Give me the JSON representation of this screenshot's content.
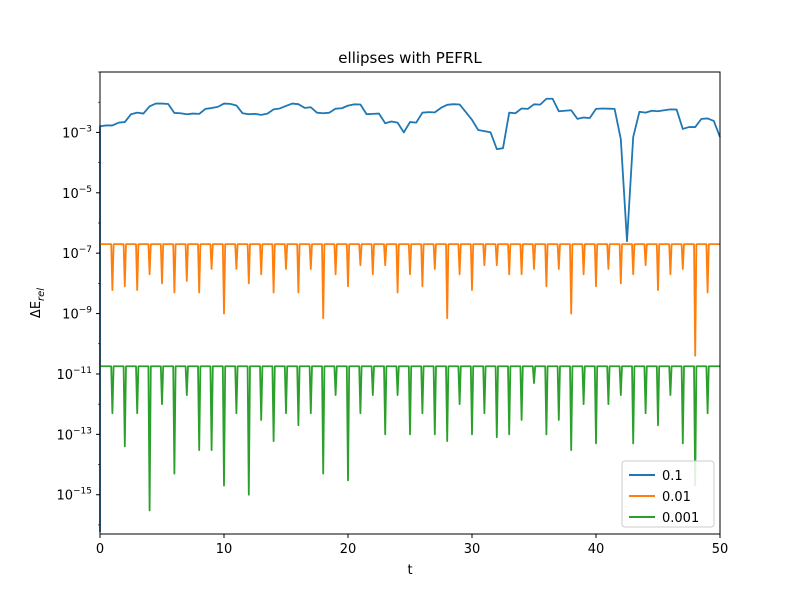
{
  "chart_data": {
    "type": "line",
    "title": "ellipses with PEFRL",
    "xlabel": "t",
    "ylabel": "ΔE",
    "ylabel_subscript": "rel",
    "xlim": [
      0,
      50
    ],
    "ylim_log10": [
      -16.3,
      -1.0
    ],
    "yscale": "log",
    "grid": false,
    "legend_position": "lower-right",
    "x_ticks": [
      0,
      10,
      20,
      30,
      40,
      50
    ],
    "x_tick_labels": [
      "0",
      "10",
      "20",
      "30",
      "40",
      "50"
    ],
    "y_ticks_log10": [
      -15,
      -13,
      -11,
      -9,
      -7,
      -5,
      -3
    ],
    "y_tick_base": "10",
    "y_tick_exponents": [
      "−15",
      "−13",
      "−11",
      "−9",
      "−7",
      "−5",
      "−3"
    ],
    "series": [
      {
        "name": "0.1",
        "color": "#1f77b4",
        "x": [
          0,
          0.5,
          1,
          1.5,
          2,
          2.5,
          3,
          3.5,
          4,
          4.5,
          5,
          5.5,
          6,
          6.5,
          7,
          7.5,
          8,
          8.5,
          9,
          9.5,
          10,
          10.5,
          11,
          11.5,
          12,
          12.5,
          13,
          13.5,
          14,
          14.5,
          15,
          15.5,
          16,
          16.5,
          17,
          17.5,
          18,
          18.5,
          19,
          19.5,
          20,
          20.5,
          21,
          21.5,
          22,
          22.5,
          23,
          23.5,
          24,
          24.5,
          25,
          25.5,
          26,
          26.5,
          27,
          27.5,
          28,
          28.5,
          29,
          29.5,
          30,
          30.5,
          31,
          31.5,
          32,
          32.5,
          33,
          33.5,
          34,
          34.5,
          35,
          35.5,
          36,
          36.5,
          37,
          37.5,
          38,
          38.5,
          39,
          39.5,
          40,
          40.5,
          41,
          41.5,
          42,
          42.5,
          43,
          43.5,
          44,
          44.5,
          45,
          45.5,
          46,
          46.5,
          47,
          47.5,
          48,
          48.5,
          49,
          49.5,
          50
        ],
        "values": [
          0.0016,
          0.0017,
          0.0017,
          0.0021,
          0.0022,
          0.004,
          0.0045,
          0.0042,
          0.0073,
          0.009,
          0.009,
          0.0087,
          0.0044,
          0.0043,
          0.004,
          0.0042,
          0.0041,
          0.006,
          0.0064,
          0.007,
          0.009,
          0.0088,
          0.0078,
          0.0043,
          0.004,
          0.0041,
          0.0038,
          0.0042,
          0.0058,
          0.0062,
          0.0075,
          0.009,
          0.0086,
          0.0065,
          0.0068,
          0.0045,
          0.0043,
          0.0045,
          0.0061,
          0.0063,
          0.0077,
          0.0085,
          0.0084,
          0.004,
          0.0041,
          0.0042,
          0.002,
          0.0023,
          0.0021,
          0.001,
          0.0022,
          0.0021,
          0.0045,
          0.0047,
          0.0046,
          0.0065,
          0.0082,
          0.0086,
          0.0084,
          0.0047,
          0.0026,
          0.0012,
          0.0011,
          0.001,
          0.00028,
          0.0003,
          0.0045,
          0.0043,
          0.0062,
          0.006,
          0.0085,
          0.0083,
          0.013,
          0.013,
          0.005,
          0.0052,
          0.0054,
          0.0028,
          0.0031,
          0.003,
          0.006,
          0.0062,
          0.0061,
          0.006,
          0.0006,
          2.5e-07,
          0.0007,
          0.0048,
          0.0045,
          0.0052,
          0.005,
          0.0054,
          0.0058,
          0.0057,
          0.0013,
          0.0015,
          0.0015,
          0.0028,
          0.0029,
          0.0024,
          0.0007
        ]
      },
      {
        "name": "0.01",
        "color": "#ff7f0e",
        "baseline": 2e-07,
        "spike_x": [
          1,
          2,
          3,
          4,
          5,
          6,
          7,
          8,
          9,
          10,
          11,
          12,
          13,
          14,
          15,
          16,
          17,
          18,
          19,
          20,
          21,
          22,
          23,
          24,
          25,
          26,
          27,
          28,
          29,
          30,
          31,
          32,
          33,
          34,
          35,
          36,
          37,
          38,
          39,
          40,
          41,
          42,
          43,
          44,
          45,
          46,
          47,
          48,
          49
        ],
        "spike_values": [
          6e-09,
          8e-09,
          6e-09,
          2e-08,
          1e-08,
          5e-09,
          1.2e-08,
          5e-09,
          3e-08,
          1e-09,
          3e-08,
          1e-08,
          2e-08,
          5e-09,
          3e-08,
          5e-09,
          3e-08,
          7e-10,
          2e-08,
          8e-09,
          4e-08,
          2e-08,
          4e-08,
          5e-09,
          2e-08,
          8e-09,
          3e-08,
          7e-10,
          2e-08,
          6e-09,
          4e-08,
          4e-08,
          2e-08,
          2e-08,
          3e-08,
          8e-09,
          3e-08,
          1e-09,
          2e-08,
          8e-09,
          3e-08,
          1e-08,
          2e-08,
          4e-08,
          6e-09,
          2e-08,
          3e-08,
          4e-11,
          5e-09
        ]
      },
      {
        "name": "0.001",
        "color": "#2ca02c",
        "baseline": 1.8e-11,
        "spike_x": [
          1,
          2,
          3,
          4,
          5,
          6,
          7,
          8,
          9,
          10,
          11,
          12,
          13,
          14,
          15,
          16,
          17,
          18,
          19,
          20,
          21,
          22,
          23,
          24,
          25,
          26,
          27,
          28,
          29,
          30,
          31,
          32,
          33,
          34,
          35,
          36,
          37,
          38,
          39,
          40,
          41,
          42,
          43,
          44,
          45,
          46,
          47,
          48,
          49
        ],
        "spike_values": [
          5e-13,
          4e-14,
          5e-13,
          3e-16,
          1e-12,
          5e-15,
          2e-12,
          3e-14,
          3e-14,
          2e-15,
          5e-13,
          1e-15,
          3e-13,
          6e-14,
          5e-13,
          2e-13,
          5e-13,
          5e-15,
          2e-12,
          3e-15,
          5e-13,
          2e-12,
          1e-13,
          2e-12,
          1e-13,
          5e-13,
          1e-13,
          6e-14,
          1e-12,
          1e-13,
          5e-13,
          8e-14,
          1e-13,
          3e-13,
          5e-12,
          1e-13,
          3e-13,
          3e-14,
          1e-12,
          5e-14,
          1e-12,
          2e-12,
          5e-14,
          5e-13,
          2e-13,
          2e-12,
          5e-14,
          2e-15,
          5e-13
        ]
      }
    ]
  }
}
